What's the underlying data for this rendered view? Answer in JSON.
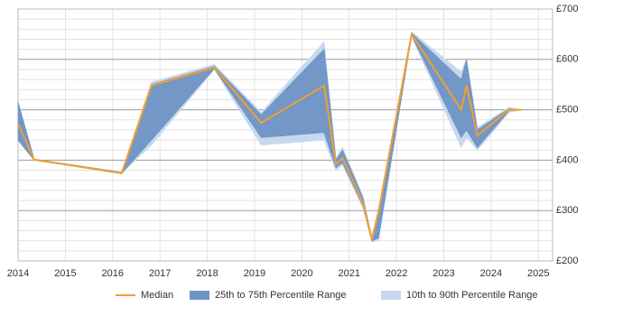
{
  "chart_data": {
    "type": "line",
    "x": [
      2014.0,
      2014.34,
      2016.19,
      2016.82,
      2018.15,
      2019.14,
      2020.47,
      2020.72,
      2020.86,
      2021.29,
      2021.48,
      2021.62,
      2022.32,
      2023.37,
      2023.48,
      2023.71,
      2024.38,
      2024.66
    ],
    "series": [
      {
        "name": "Median",
        "color": "#f0a030",
        "values": [
          472,
          401,
          374,
          548,
          584,
          474,
          548,
          392,
          404,
          315,
          243,
          297,
          650,
          500,
          548,
          449,
          500,
          500
        ]
      }
    ],
    "bands": [
      {
        "name": "10th to 90th Percentile Range",
        "color": "#c6d9ee",
        "low": [
          440,
          400,
          374,
          430,
          580,
          430,
          440,
          380,
          390,
          305,
          238,
          240,
          645,
          425,
          445,
          420,
          495,
          500
        ],
        "high": [
          515,
          402,
          376,
          555,
          590,
          495,
          635,
          405,
          425,
          330,
          248,
          305,
          655,
          575,
          600,
          465,
          505,
          500
        ]
      },
      {
        "name": "25th to 75th Percentile Range",
        "color": "#6f94c4",
        "low": [
          440,
          400,
          374,
          440,
          582,
          445,
          455,
          385,
          395,
          310,
          240,
          245,
          648,
          445,
          460,
          425,
          498,
          500
        ],
        "high": [
          515,
          402,
          376,
          550,
          586,
          490,
          620,
          400,
          420,
          325,
          245,
          300,
          652,
          560,
          600,
          460,
          502,
          500
        ]
      }
    ],
    "xlim": [
      2014,
      2025.3
    ],
    "xticks": [
      2014,
      2015,
      2016,
      2017,
      2018,
      2019,
      2020,
      2021,
      2022,
      2023,
      2024,
      2025
    ],
    "ylim": [
      200,
      700
    ],
    "yticks": [
      {
        "value": 200,
        "label": "£200"
      },
      {
        "value": 300,
        "label": "£300"
      },
      {
        "value": 400,
        "label": "£400"
      },
      {
        "value": 500,
        "label": "£500"
      },
      {
        "value": 600,
        "label": "£600"
      },
      {
        "value": 700,
        "label": "£700"
      }
    ],
    "grid": true
  }
}
